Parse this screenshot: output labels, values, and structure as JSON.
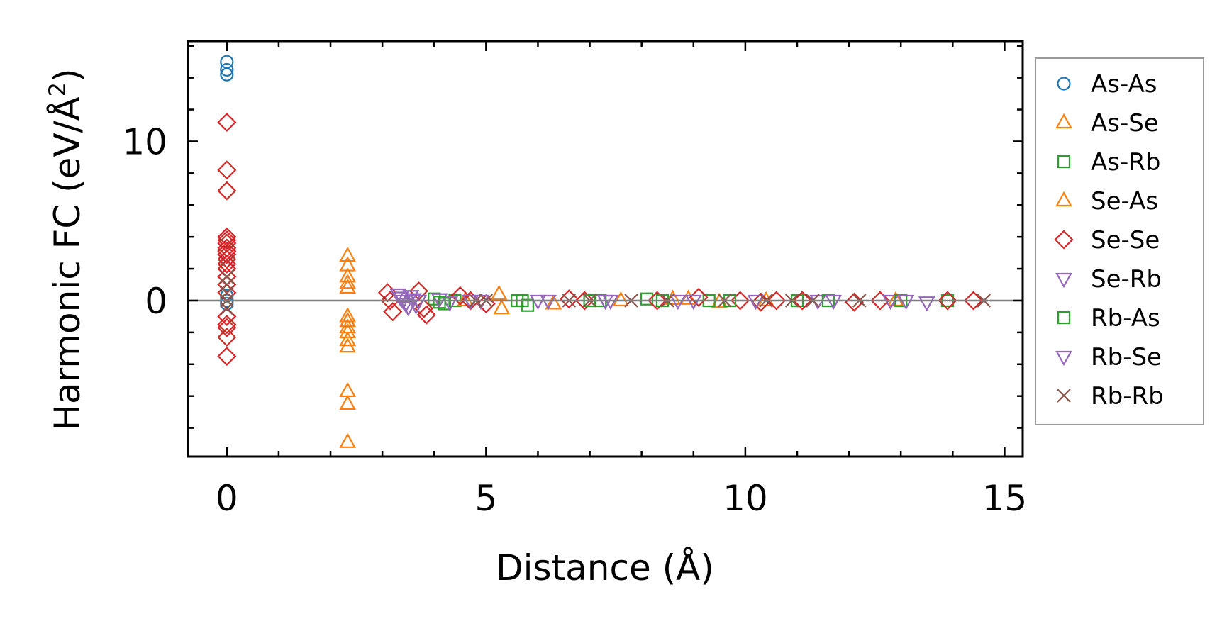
{
  "chart_data": {
    "type": "scatter",
    "xlabel": "Distance (Å)",
    "ylabel": "Harmonic FC (eV/Å",
    "ylabel_sup": "2",
    "ylabel_end": ")",
    "xlim": [
      -0.75,
      15.35
    ],
    "ylim": [
      -9.8,
      16.3
    ],
    "x_ticks": [
      0,
      5,
      10,
      15
    ],
    "x_tick_labels": [
      "0",
      "5",
      "10",
      "15"
    ],
    "y_ticks": [
      0,
      10
    ],
    "y_tick_labels": [
      "0",
      "10"
    ],
    "x_minor_step": 1,
    "y_minor_step": 2,
    "zero_line": true,
    "grid": false,
    "legend_position": "right",
    "series": [
      {
        "name": "As-As",
        "marker": "circle",
        "color": "#1f77b4",
        "x": [
          0,
          0,
          0,
          0,
          0,
          0
        ],
        "y": [
          15.0,
          14.5,
          14.2,
          0.3,
          0.0,
          -0.2
        ]
      },
      {
        "name": "As-Se",
        "marker": "triangle-up",
        "color": "#ff7f0e",
        "x": [
          2.33,
          2.33,
          2.33,
          2.33,
          2.33,
          2.33,
          2.33,
          2.33,
          2.33,
          2.33,
          2.33,
          2.33,
          2.33,
          2.33,
          5.25,
          5.3,
          7.6,
          8.9,
          9.5,
          10.4
        ],
        "y": [
          2.8,
          2.2,
          1.5,
          1.1,
          0.8,
          -1.0,
          -1.3,
          -1.7,
          -2.0,
          -2.5,
          -2.9,
          -5.7,
          -6.5,
          -8.9,
          0.4,
          -0.5,
          0.0,
          0.1,
          -0.1,
          0.0
        ]
      },
      {
        "name": "As-Rb",
        "marker": "square",
        "color": "#2ca02c",
        "x": [
          4.0,
          4.2,
          4.4,
          5.6,
          5.8,
          7.2,
          8.1,
          9.3,
          11.0,
          13.9
        ],
        "y": [
          0.1,
          -0.2,
          0.0,
          0.0,
          -0.3,
          0.0,
          0.1,
          0.0,
          0.0,
          0.0
        ]
      },
      {
        "name": "Se-As",
        "marker": "triangle-up",
        "color": "#ff7f0e",
        "x": [
          4.6,
          6.3,
          8.6,
          12.9
        ],
        "y": [
          0.0,
          -0.2,
          0.1,
          0.0
        ]
      },
      {
        "name": "Se-Se",
        "marker": "diamond",
        "color": "#d62728",
        "x": [
          0,
          0,
          0,
          0,
          0,
          0,
          0,
          0,
          0,
          0,
          0,
          0,
          0,
          0,
          0,
          0,
          0,
          0,
          0,
          0,
          3.1,
          3.15,
          3.2,
          3.7,
          3.8,
          3.85,
          4.5,
          4.7,
          5.0,
          6.6,
          6.9,
          8.3,
          9.1,
          9.9,
          10.3,
          10.6,
          11.1,
          12.1,
          12.6,
          13.9,
          14.4
        ],
        "y": [
          11.2,
          8.2,
          6.9,
          4.0,
          3.8,
          3.6,
          3.3,
          3.1,
          2.9,
          2.6,
          2.3,
          2.0,
          1.5,
          1.0,
          0.5,
          -1.0,
          -1.5,
          -1.7,
          -2.3,
          -3.5,
          0.5,
          0.0,
          -0.7,
          0.6,
          -0.5,
          -0.9,
          0.3,
          0.0,
          -0.2,
          0.1,
          0.0,
          0.0,
          0.2,
          0.0,
          -0.1,
          0.0,
          0.0,
          -0.1,
          0.0,
          0.0,
          0.0
        ]
      },
      {
        "name": "Se-Rb",
        "marker": "triangle-down",
        "color": "#9467bd",
        "x": [
          3.3,
          3.35,
          3.4,
          3.45,
          3.5,
          3.55,
          3.6,
          3.65,
          3.7,
          4.1,
          4.3,
          4.9,
          6.2,
          7.4,
          9.0,
          11.4,
          12.8
        ],
        "y": [
          0.4,
          0.2,
          0.0,
          -0.2,
          -0.4,
          0.3,
          0.1,
          -0.3,
          0.0,
          0.1,
          -0.1,
          0.0,
          0.0,
          0.0,
          0.0,
          0.0,
          0.0
        ]
      },
      {
        "name": "Rb-As",
        "marker": "square",
        "color": "#2ca02c",
        "x": [
          4.1,
          5.7,
          7.0,
          8.4,
          9.7,
          11.6,
          13.0
        ],
        "y": [
          -0.1,
          0.0,
          0.0,
          0.0,
          0.0,
          0.0,
          0.0
        ]
      },
      {
        "name": "Rb-Se",
        "marker": "triangle-down",
        "color": "#9467bd",
        "x": [
          3.5,
          4.7,
          6.0,
          7.3,
          8.7,
          10.2,
          11.7,
          13.1,
          13.5
        ],
        "y": [
          -0.4,
          0.0,
          0.0,
          0.0,
          0.0,
          0.0,
          0.0,
          0.0,
          -0.1
        ]
      },
      {
        "name": "Rb-Rb",
        "marker": "x",
        "color": "#8c564b",
        "x": [
          0,
          0,
          0,
          0,
          0,
          4.8,
          5.0,
          6.6,
          7.0,
          7.8,
          8.5,
          9.6,
          10.4,
          10.9,
          11.3,
          12.2,
          14.6
        ],
        "y": [
          1.5,
          1.0,
          0.5,
          0.0,
          -0.5,
          0.0,
          0.0,
          0.0,
          0.0,
          0.0,
          0.0,
          0.0,
          0.0,
          0.0,
          0.0,
          0.0,
          0.0
        ]
      }
    ]
  }
}
